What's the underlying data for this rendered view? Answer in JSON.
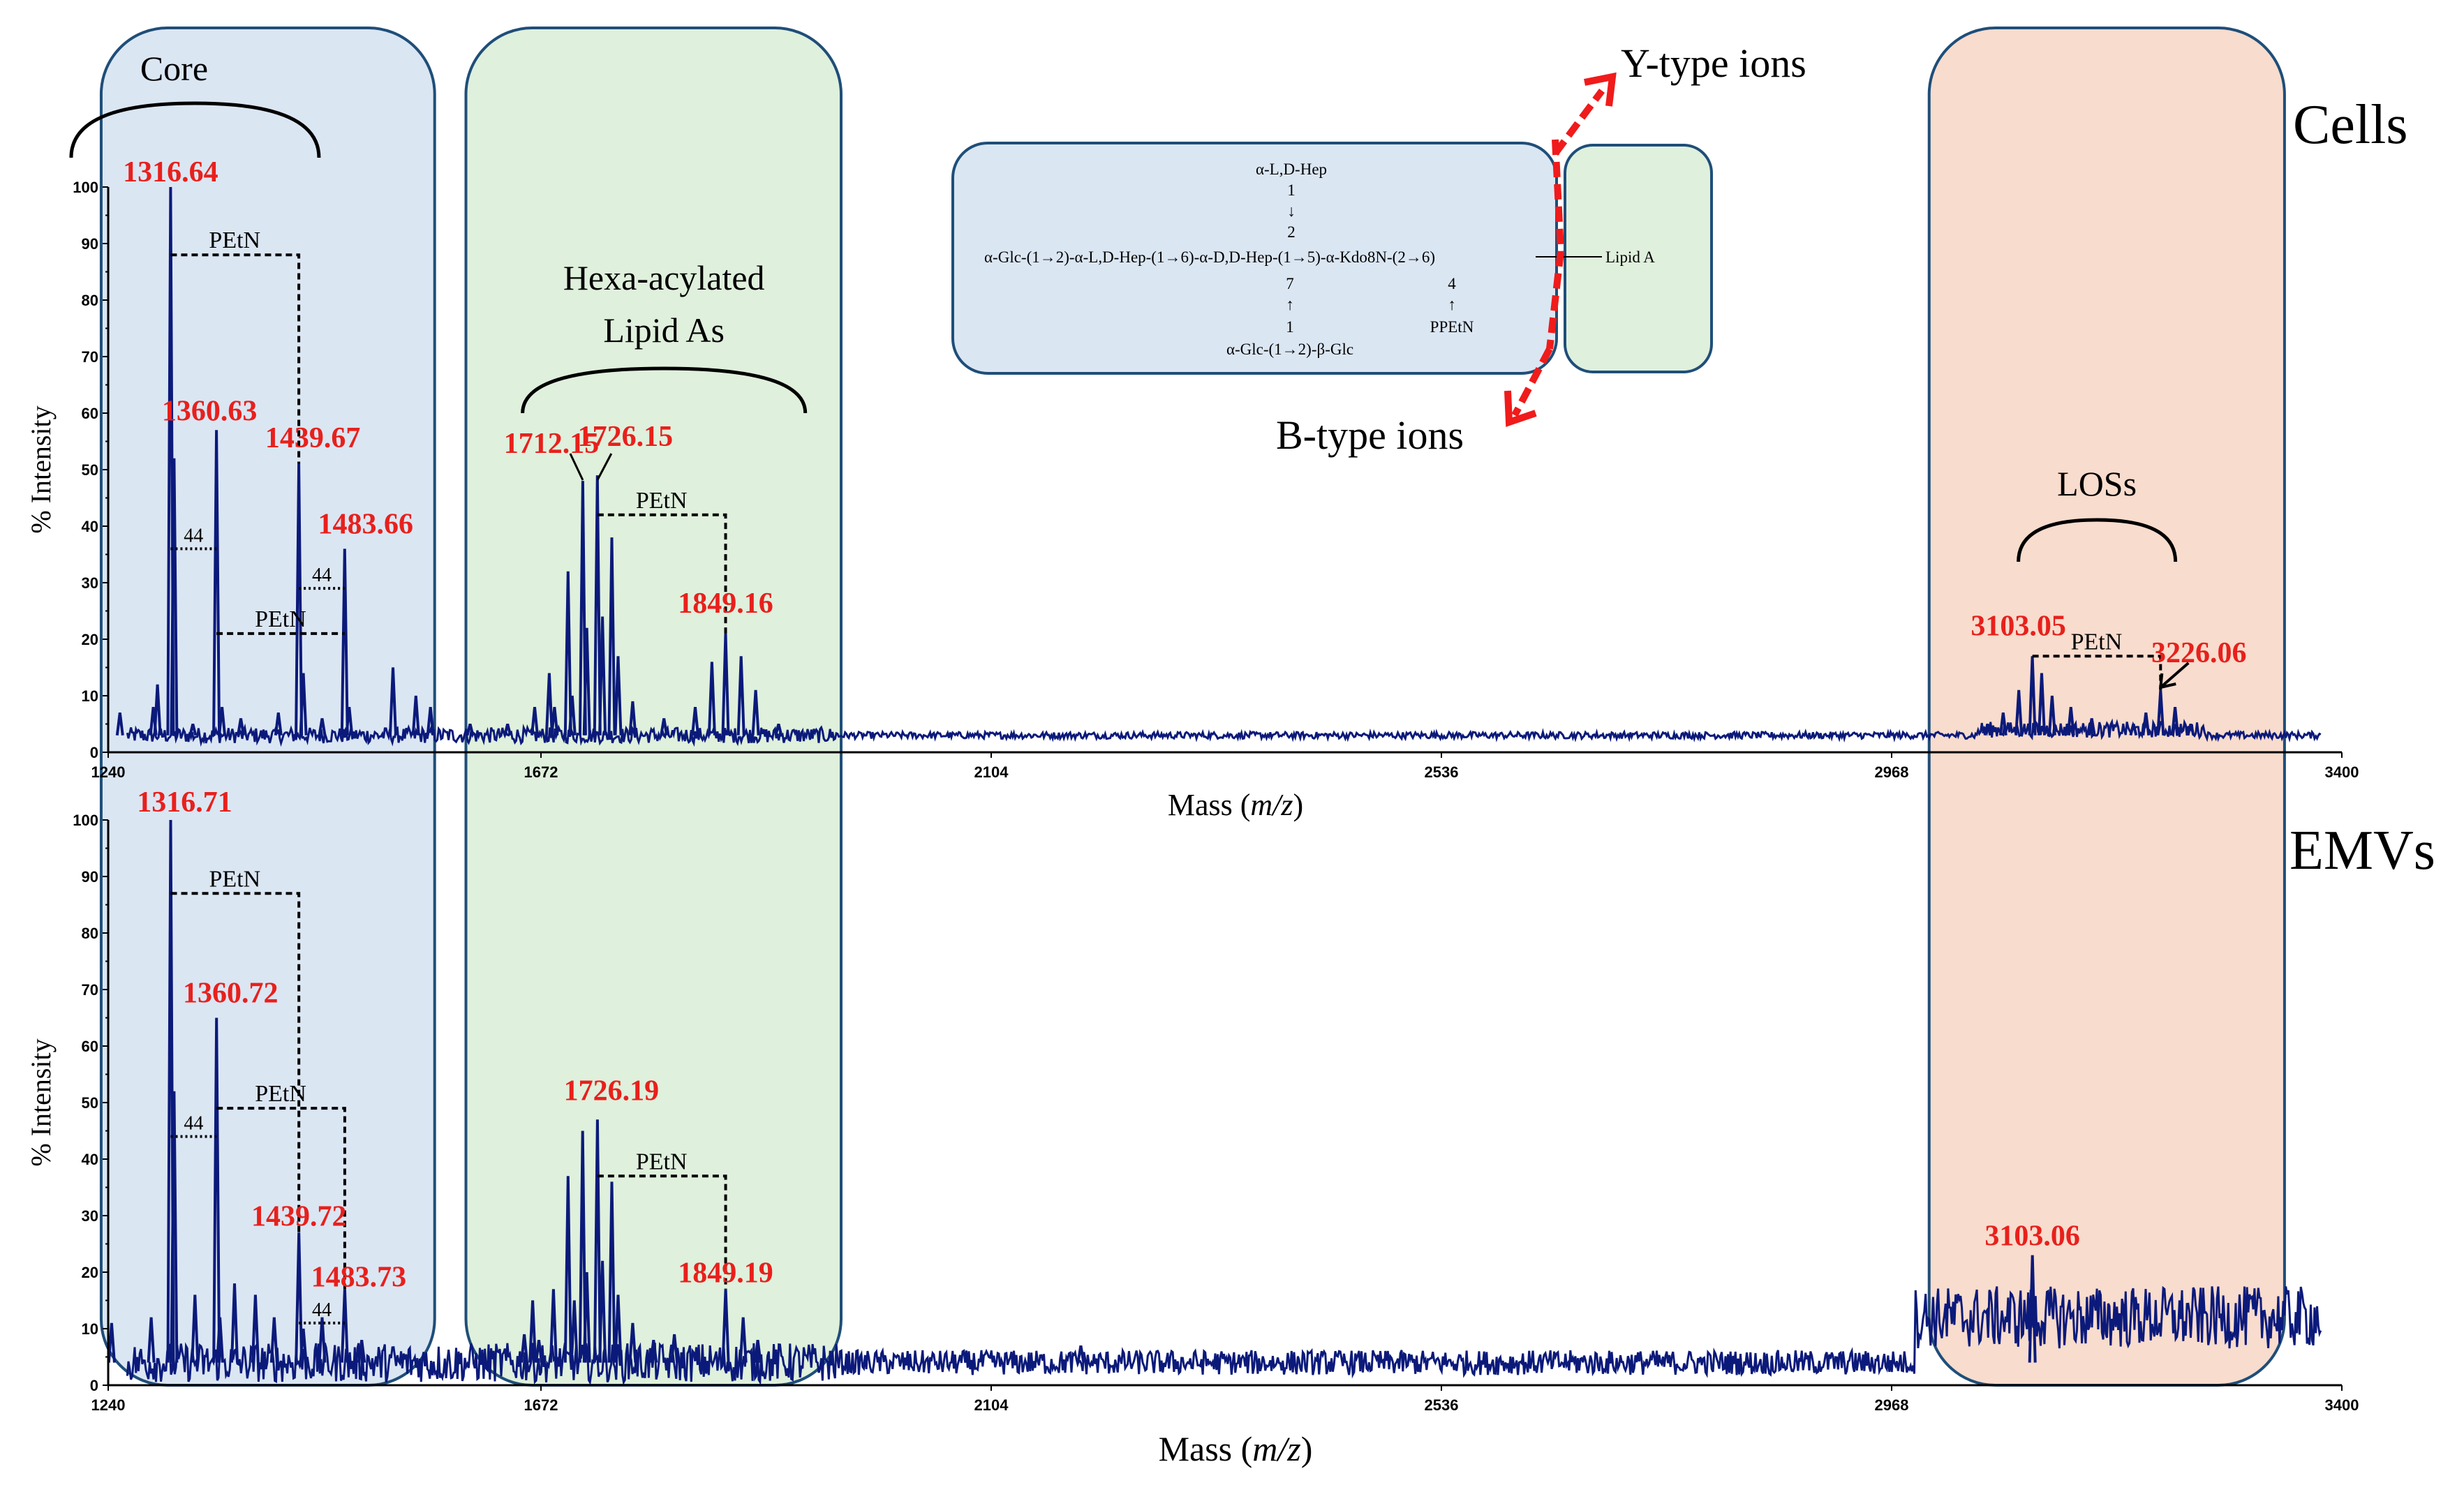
{
  "colors": {
    "spectrum": "#0b1a7a",
    "peak_label": "#e8201c",
    "core_fill": "#dbe6f3",
    "lipid_fill": "#dff0dc",
    "los_fill": "#f8dccd",
    "box_stroke": "#1f4e79",
    "arrow": "#f01b1b"
  },
  "regions": {
    "core": {
      "label": "Core",
      "xmin": 1250,
      "xmax": 1570
    },
    "lipid": {
      "label_line1": "Hexa-acylated",
      "label_line2": "Lipid As",
      "xmin": 1600,
      "xmax": 1960
    },
    "los": {
      "label": "LOSs",
      "xmin": 3004,
      "xmax": 3345
    }
  },
  "structure": {
    "line1": "α-L,D-Hep",
    "line2": "1",
    "line3": "↓",
    "line4": "2",
    "main_chain": "α-Glc-(1→2)-α-L,D-Hep-(1→6)-α-D,D-Hep-(1→5)-α-Kdo8N-(2→6)",
    "lipid_a": "Lipid A",
    "line6a": "7",
    "line7a": "↑",
    "line8a": "1",
    "line9a": "α-Glc-(1→2)-β-Glc",
    "line6b": "4",
    "line7b": "↑",
    "line8b": "PPEtN",
    "y_ions": "Y-type ions",
    "b_ions": "B-type ions"
  },
  "chart_data": [
    {
      "type": "line",
      "name": "Cells",
      "panel_label": "Cells",
      "xlabel_prefix": "Mass (",
      "xlabel_italic": "m/z",
      "xlabel_suffix": ")",
      "ylabel": "% Intensity",
      "xlim": [
        1240,
        3400
      ],
      "ylim": [
        0,
        100
      ],
      "xticks": [
        "1240",
        "1672",
        "2104",
        "2536",
        "2968",
        "3400"
      ],
      "yticks": [
        "0",
        "10",
        "20",
        "30",
        "40",
        "50",
        "60",
        "70",
        "80",
        "90",
        "100"
      ],
      "baseline": 3,
      "peaks": [
        {
          "x": 1268,
          "y": 7
        },
        {
          "x": 1300,
          "y": 8
        },
        {
          "x": 1304,
          "y": 12
        },
        {
          "x": 1316.64,
          "y": 100
        },
        {
          "x": 1320,
          "y": 52
        },
        {
          "x": 1338,
          "y": 5
        },
        {
          "x": 1360.63,
          "y": 57
        },
        {
          "x": 1366,
          "y": 8
        },
        {
          "x": 1384,
          "y": 6
        },
        {
          "x": 1420,
          "y": 7
        },
        {
          "x": 1439.67,
          "y": 51
        },
        {
          "x": 1444,
          "y": 14
        },
        {
          "x": 1462,
          "y": 6
        },
        {
          "x": 1483.66,
          "y": 36
        },
        {
          "x": 1488,
          "y": 8
        },
        {
          "x": 1530,
          "y": 15
        },
        {
          "x": 1552,
          "y": 10
        },
        {
          "x": 1566,
          "y": 8
        },
        {
          "x": 1604,
          "y": 5
        },
        {
          "x": 1640,
          "y": 5
        },
        {
          "x": 1666,
          "y": 8
        },
        {
          "x": 1680,
          "y": 14
        },
        {
          "x": 1685,
          "y": 8
        },
        {
          "x": 1698,
          "y": 32
        },
        {
          "x": 1702,
          "y": 10
        },
        {
          "x": 1712.15,
          "y": 48
        },
        {
          "x": 1716,
          "y": 22
        },
        {
          "x": 1726.15,
          "y": 49
        },
        {
          "x": 1731,
          "y": 24
        },
        {
          "x": 1740,
          "y": 38
        },
        {
          "x": 1746,
          "y": 17
        },
        {
          "x": 1760,
          "y": 9
        },
        {
          "x": 1790,
          "y": 6
        },
        {
          "x": 1820,
          "y": 8
        },
        {
          "x": 1836,
          "y": 16
        },
        {
          "x": 1849.16,
          "y": 21
        },
        {
          "x": 1864,
          "y": 17
        },
        {
          "x": 1878,
          "y": 11
        },
        {
          "x": 1900,
          "y": 5
        },
        {
          "x": 3060,
          "y": 5
        },
        {
          "x": 3075,
          "y": 7
        },
        {
          "x": 3090,
          "y": 11
        },
        {
          "x": 3103.05,
          "y": 17
        },
        {
          "x": 3112,
          "y": 14
        },
        {
          "x": 3122,
          "y": 10
        },
        {
          "x": 3140,
          "y": 8
        },
        {
          "x": 3160,
          "y": 6
        },
        {
          "x": 3200,
          "y": 5
        },
        {
          "x": 3212,
          "y": 7
        },
        {
          "x": 3226.06,
          "y": 11
        },
        {
          "x": 3240,
          "y": 8
        },
        {
          "x": 3255,
          "y": 5
        }
      ],
      "peak_labels": [
        {
          "text": "1316.64",
          "x": 1316.64,
          "y": 100
        },
        {
          "text": "1360.63",
          "x": 1360.63,
          "y": 57
        },
        {
          "text": "1439.67",
          "x": 1439.67,
          "y": 51
        },
        {
          "text": "1483.66",
          "x": 1483.66,
          "y": 36
        },
        {
          "text": "1712.15",
          "x": 1712.15,
          "y": 48
        },
        {
          "text": "1726.15",
          "x": 1726.15,
          "y": 49
        },
        {
          "text": "1849.16",
          "x": 1849.16,
          "y": 21
        },
        {
          "text": "3103.05",
          "x": 3103.05,
          "y": 17
        },
        {
          "text": "3226.06",
          "x": 3226.06,
          "y": 11
        }
      ],
      "annotations": [
        {
          "text": "PEtN",
          "from": 1316.64,
          "to": 1439.67,
          "y": 88
        },
        {
          "text": "PEtN",
          "from": 1360.63,
          "to": 1483.66,
          "y": 21
        },
        {
          "text": "44",
          "from": 1316.64,
          "to": 1360.63,
          "y": 36
        },
        {
          "text": "44",
          "from": 1439.67,
          "to": 1483.66,
          "y": 29
        },
        {
          "text": "PEtN",
          "from": 1726.15,
          "to": 1849.16,
          "y": 42
        },
        {
          "text": "PEtN",
          "from": 3103.05,
          "to": 3226.06,
          "y": 17
        }
      ]
    },
    {
      "type": "line",
      "name": "EMVs",
      "panel_label": "EMVs",
      "xlabel_prefix": "Mass (",
      "xlabel_italic": "m/z",
      "xlabel_suffix": ")",
      "ylabel": "% Intensity",
      "xlim": [
        1240,
        3400
      ],
      "ylim": [
        0,
        100
      ],
      "xticks": [
        "1240",
        "1672",
        "2104",
        "2536",
        "2968",
        "3400"
      ],
      "yticks": [
        "0",
        "10",
        "20",
        "30",
        "40",
        "50",
        "60",
        "70",
        "80",
        "90",
        "100"
      ],
      "baseline": 4,
      "peaks": [
        {
          "x": 1260,
          "y": 11
        },
        {
          "x": 1298,
          "y": 12
        },
        {
          "x": 1316.71,
          "y": 100
        },
        {
          "x": 1320,
          "y": 52
        },
        {
          "x": 1340,
          "y": 16
        },
        {
          "x": 1360.72,
          "y": 65
        },
        {
          "x": 1364,
          "y": 12
        },
        {
          "x": 1378,
          "y": 18
        },
        {
          "x": 1398,
          "y": 16
        },
        {
          "x": 1416,
          "y": 12
        },
        {
          "x": 1439.72,
          "y": 27
        },
        {
          "x": 1444,
          "y": 10
        },
        {
          "x": 1462,
          "y": 12
        },
        {
          "x": 1483.73,
          "y": 17
        },
        {
          "x": 1500,
          "y": 8
        },
        {
          "x": 1656,
          "y": 9
        },
        {
          "x": 1664,
          "y": 15
        },
        {
          "x": 1670,
          "y": 8
        },
        {
          "x": 1684,
          "y": 17
        },
        {
          "x": 1698,
          "y": 37
        },
        {
          "x": 1704,
          "y": 15
        },
        {
          "x": 1712,
          "y": 45
        },
        {
          "x": 1716,
          "y": 20
        },
        {
          "x": 1726.19,
          "y": 47
        },
        {
          "x": 1731,
          "y": 22
        },
        {
          "x": 1740,
          "y": 36
        },
        {
          "x": 1746,
          "y": 16
        },
        {
          "x": 1760,
          "y": 11
        },
        {
          "x": 1780,
          "y": 8
        },
        {
          "x": 1800,
          "y": 9
        },
        {
          "x": 1849.19,
          "y": 17
        },
        {
          "x": 1866,
          "y": 12
        },
        {
          "x": 1880,
          "y": 8
        },
        {
          "x": 2190,
          "y": 7
        },
        {
          "x": 3103.06,
          "y": 23
        }
      ],
      "peak_labels": [
        {
          "text": "1316.71",
          "x": 1316.71,
          "y": 100
        },
        {
          "text": "1360.72",
          "x": 1360.72,
          "y": 65
        },
        {
          "text": "1439.72",
          "x": 1439.72,
          "y": 27
        },
        {
          "text": "1483.73",
          "x": 1483.73,
          "y": 17
        },
        {
          "text": "1726.19",
          "x": 1726.19,
          "y": 47
        },
        {
          "text": "1849.19",
          "x": 1849.19,
          "y": 17
        },
        {
          "text": "3103.06",
          "x": 3103.06,
          "y": 23
        }
      ],
      "annotations": [
        {
          "text": "PEtN",
          "from": 1316.71,
          "to": 1439.72,
          "y": 87
        },
        {
          "text": "PEtN",
          "from": 1360.72,
          "to": 1483.73,
          "y": 49
        },
        {
          "text": "44",
          "from": 1316.71,
          "to": 1360.72,
          "y": 44
        },
        {
          "text": "44",
          "from": 1439.72,
          "to": 1483.73,
          "y": 11
        },
        {
          "text": "PEtN",
          "from": 1726.19,
          "to": 1849.19,
          "y": 37
        }
      ]
    }
  ]
}
